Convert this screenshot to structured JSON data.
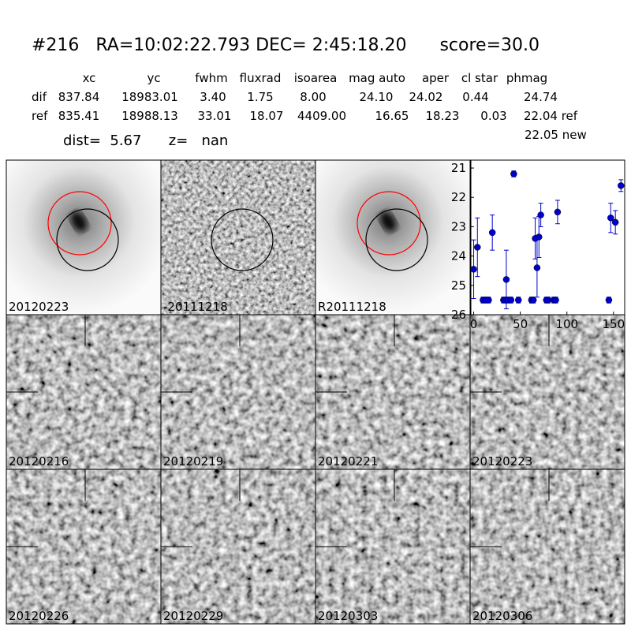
{
  "header": {
    "title": "#216   RA=10:02:22.793 DEC= 2:45:18.20      score=30.0",
    "columns": [
      "xc",
      "yc",
      "fwhm",
      "fluxrad",
      "isoarea",
      "mag auto",
      "aper",
      "cl star",
      "phmag"
    ],
    "rows": [
      [
        "dif",
        "837.84",
        "18983.01",
        "3.40",
        "1.75",
        "8.00",
        "24.10",
        "24.02",
        "0.44",
        "24.74"
      ],
      [
        "ref",
        "835.41",
        "18988.13",
        "33.01",
        "18.07",
        "4409.00",
        "16.65",
        "18.23",
        "0.03",
        "22.04 ref"
      ]
    ],
    "extra": "22.05 new",
    "dist": "dist=  5.67      z=   nan"
  },
  "panels": [
    {
      "label": "20120223"
    },
    {
      "label": "-20111218"
    },
    {
      "label": "R20111218"
    },
    {
      "label": "20120216"
    },
    {
      "label": "20120219"
    },
    {
      "label": "20120221"
    },
    {
      "label": "20120223",
      "color": "#ff0000"
    },
    {
      "label": "20120226"
    },
    {
      "label": "20120229"
    },
    {
      "label": "20120303"
    },
    {
      "label": "20120306"
    }
  ],
  "chart_data": {
    "type": "scatter",
    "color": "#0000cc",
    "x": [
      0,
      4,
      10,
      13,
      16,
      20,
      32,
      34,
      35,
      37,
      40,
      43,
      48,
      62,
      64,
      66,
      68,
      70,
      72,
      78,
      80,
      86,
      88,
      90,
      145,
      147,
      152,
      158
    ],
    "values": [
      24.45,
      23.7,
      25.5,
      25.5,
      25.5,
      23.2,
      25.5,
      25.5,
      24.8,
      25.5,
      25.5,
      21.2,
      25.5,
      25.5,
      25.5,
      23.4,
      24.4,
      23.35,
      22.6,
      25.5,
      25.5,
      25.5,
      25.5,
      22.5,
      25.5,
      22.7,
      22.85,
      21.6
    ],
    "errors": [
      1.0,
      1.0,
      0.1,
      0.1,
      0.1,
      0.6,
      0.1,
      0.1,
      1.0,
      0.1,
      0.1,
      0.1,
      0.1,
      0.1,
      0.1,
      0.7,
      1.0,
      0.7,
      0.4,
      0.1,
      0.1,
      0.1,
      0.1,
      0.4,
      0.1,
      0.5,
      0.4,
      0.2
    ],
    "xlim": [
      -3,
      162
    ],
    "ylim": [
      26,
      20.73
    ],
    "xticks": [
      0,
      50,
      100,
      150
    ],
    "yticks": [
      21,
      22,
      23,
      24,
      25,
      26
    ]
  }
}
